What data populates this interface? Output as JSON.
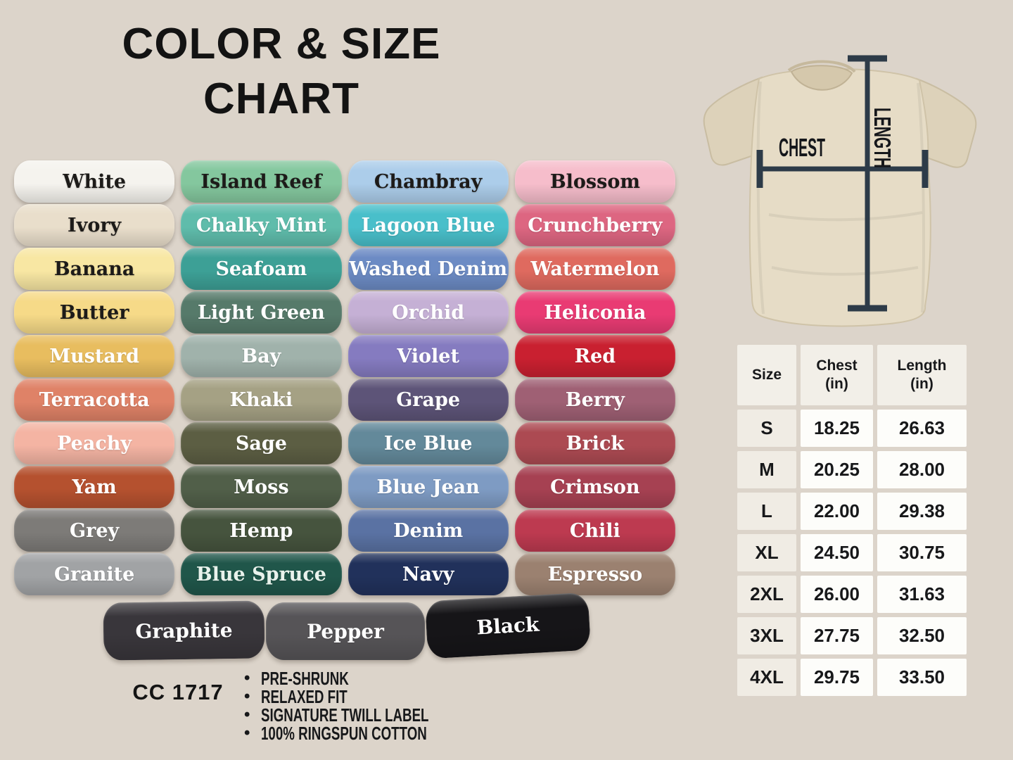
{
  "title": {
    "line1": "COLOR & SIZE",
    "line2": "CHART"
  },
  "product_code": "CC 1717",
  "bullet_glyph": "•",
  "features": [
    "PRE-SHRUNK",
    "RELAXED FIT",
    "SIGNATURE TWILL LABEL",
    "100% RINGSPUN COTTON"
  ],
  "diagram": {
    "chest_label": "CHEST",
    "length_label": "LENGTH"
  },
  "colors": {
    "columns": [
      [
        {
          "name": "White",
          "bg": "#f5f3ee",
          "text": "#1d1b19"
        },
        {
          "name": "Ivory",
          "bg": "#e9decb",
          "text": "#1d1b19"
        },
        {
          "name": "Banana",
          "bg": "#f8e7a3",
          "text": "#1d1b19"
        },
        {
          "name": "Butter",
          "bg": "#f6da88",
          "text": "#1d1b19"
        },
        {
          "name": "Mustard",
          "bg": "#e8bd5f",
          "text": "#ffffff"
        },
        {
          "name": "Terracotta",
          "bg": "#df8267",
          "text": "#ffffff"
        },
        {
          "name": "Peachy",
          "bg": "#f4b4a3",
          "text": "#ffffff"
        },
        {
          "name": "Yam",
          "bg": "#b5512f",
          "text": "#ffffff"
        },
        {
          "name": "Grey",
          "bg": "#7d7b78",
          "text": "#ffffff"
        },
        {
          "name": "Granite",
          "bg": "#a1a3a5",
          "text": "#ffffff"
        }
      ],
      [
        {
          "name": "Island Reef",
          "bg": "#84c79e",
          "text": "#1d1b19"
        },
        {
          "name": "Chalky Mint",
          "bg": "#5fbcab",
          "text": "#ffffff"
        },
        {
          "name": "Seafoam",
          "bg": "#3da096",
          "text": "#ffffff"
        },
        {
          "name": "Light Green",
          "bg": "#567a6a",
          "text": "#ffffff"
        },
        {
          "name": "Bay",
          "bg": "#a0b2ab",
          "text": "#ffffff"
        },
        {
          "name": "Khaki",
          "bg": "#a5a184",
          "text": "#ffffff"
        },
        {
          "name": "Sage",
          "bg": "#5c5e43",
          "text": "#ffffff"
        },
        {
          "name": "Moss",
          "bg": "#515f49",
          "text": "#ffffff"
        },
        {
          "name": "Hemp",
          "bg": "#46543e",
          "text": "#ffffff"
        },
        {
          "name": "Blue Spruce",
          "bg": "#20564a",
          "text": "#e9f2ec"
        }
      ],
      [
        {
          "name": "Chambray",
          "bg": "#accdea",
          "text": "#1d1b19"
        },
        {
          "name": "Lagoon Blue",
          "bg": "#49bfca",
          "text": "#ffffff"
        },
        {
          "name": "Washed Denim",
          "bg": "#6c8bc4",
          "text": "#ffffff"
        },
        {
          "name": "Orchid",
          "bg": "#c5b0d5",
          "text": "#ffffff"
        },
        {
          "name": "Violet",
          "bg": "#857bc0",
          "text": "#ffffff"
        },
        {
          "name": "Grape",
          "bg": "#5d5478",
          "text": "#ffffff"
        },
        {
          "name": "Ice Blue",
          "bg": "#63899a",
          "text": "#ffffff"
        },
        {
          "name": "Blue Jean",
          "bg": "#7e9bc3",
          "text": "#ffffff"
        },
        {
          "name": "Denim",
          "bg": "#5a72a3",
          "text": "#ffffff"
        },
        {
          "name": "Navy",
          "bg": "#21315b",
          "text": "#ffffff"
        }
      ],
      [
        {
          "name": "Blossom",
          "bg": "#f6bdcb",
          "text": "#1d1b19"
        },
        {
          "name": "Crunchberry",
          "bg": "#dd6681",
          "text": "#ffffff"
        },
        {
          "name": "Watermelon",
          "bg": "#df6a5f",
          "text": "#ffffff"
        },
        {
          "name": "Heliconia",
          "bg": "#e93b73",
          "text": "#ffffff"
        },
        {
          "name": "Red",
          "bg": "#c92030",
          "text": "#ffffff"
        },
        {
          "name": "Berry",
          "bg": "#9f6074",
          "text": "#ffffff"
        },
        {
          "name": "Brick",
          "bg": "#ac4a52",
          "text": "#ffffff"
        },
        {
          "name": "Crimson",
          "bg": "#a64152",
          "text": "#ffffff"
        },
        {
          "name": "Chili",
          "bg": "#bd3a50",
          "text": "#ffffff"
        },
        {
          "name": "Espresso",
          "bg": "#9b8170",
          "text": "#ffffff"
        }
      ]
    ],
    "bottom_row": [
      {
        "name": "Graphite",
        "bg": "#39363b",
        "text": "#ffffff"
      },
      {
        "name": "Pepper",
        "bg": "#565457",
        "text": "#ffffff"
      },
      {
        "name": "Black",
        "bg": "#161518",
        "text": "#ffffff"
      }
    ]
  },
  "size_table": {
    "headers": [
      {
        "label": "Size",
        "unit": ""
      },
      {
        "label": "Chest",
        "unit": "(in)"
      },
      {
        "label": "Length",
        "unit": "(in)"
      }
    ],
    "rows": [
      {
        "size": "S",
        "chest": "18.25",
        "length": "26.63"
      },
      {
        "size": "M",
        "chest": "20.25",
        "length": "28.00"
      },
      {
        "size": "L",
        "chest": "22.00",
        "length": "29.38"
      },
      {
        "size": "XL",
        "chest": "24.50",
        "length": "30.75"
      },
      {
        "size": "2XL",
        "chest": "26.00",
        "length": "31.63"
      },
      {
        "size": "3XL",
        "chest": "27.75",
        "length": "32.50"
      },
      {
        "size": "4XL",
        "chest": "29.75",
        "length": "33.50"
      }
    ]
  }
}
